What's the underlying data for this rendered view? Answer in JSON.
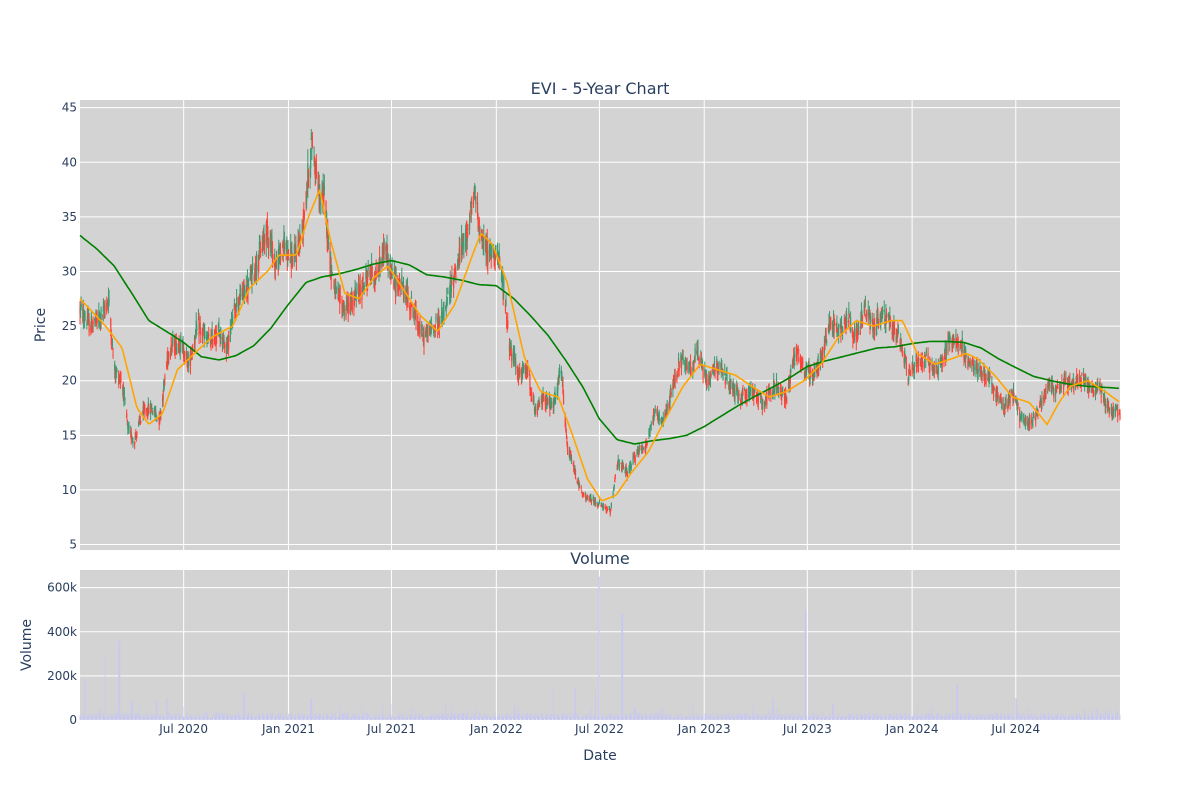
{
  "chart_data": [
    {
      "type": "candlestick",
      "title": "EVI - 5-Year Chart",
      "ylabel": "Price",
      "ylim": [
        4.5,
        45.7
      ],
      "xlim": [
        "2020-01-01",
        "2024-12-31"
      ],
      "yticks": [
        5,
        10,
        15,
        20,
        25,
        30,
        35,
        40,
        45
      ],
      "grid": true,
      "colors": {
        "increasing": "#3d9970",
        "decreasing": "#ff4136",
        "ma_short": "#ffa500",
        "ma_long": "#008000",
        "plot_bg": "#d3d3d3"
      },
      "price_anchors": [
        [
          "2020-01-01",
          26.5
        ],
        [
          "2020-01-20",
          25.0
        ],
        [
          "2020-02-10",
          26.0
        ],
        [
          "2020-02-20",
          27.5
        ],
        [
          "2020-03-01",
          21.0
        ],
        [
          "2020-03-15",
          20.0
        ],
        [
          "2020-03-25",
          15.5
        ],
        [
          "2020-04-05",
          14.5
        ],
        [
          "2020-04-20",
          17.0
        ],
        [
          "2020-05-05",
          17.5
        ],
        [
          "2020-05-20",
          16.5
        ],
        [
          "2020-06-05",
          23.0
        ],
        [
          "2020-06-25",
          23.5
        ],
        [
          "2020-07-10",
          21.5
        ],
        [
          "2020-07-25",
          25.0
        ],
        [
          "2020-08-15",
          23.5
        ],
        [
          "2020-09-01",
          24.5
        ],
        [
          "2020-09-15",
          23.0
        ],
        [
          "2020-10-01",
          27.0
        ],
        [
          "2020-10-20",
          28.5
        ],
        [
          "2020-11-05",
          30.5
        ],
        [
          "2020-11-25",
          34.0
        ],
        [
          "2020-12-10",
          30.5
        ],
        [
          "2020-12-25",
          32.5
        ],
        [
          "2021-01-10",
          31.0
        ],
        [
          "2021-01-25",
          33.5
        ],
        [
          "2021-02-05",
          39.0
        ],
        [
          "2021-02-12",
          42.0
        ],
        [
          "2021-02-25",
          36.5
        ],
        [
          "2021-03-05",
          37.0
        ],
        [
          "2021-03-15",
          31.0
        ],
        [
          "2021-03-25",
          28.0
        ],
        [
          "2021-04-10",
          26.5
        ],
        [
          "2021-04-25",
          27.5
        ],
        [
          "2021-05-10",
          28.5
        ],
        [
          "2021-05-25",
          30.0
        ],
        [
          "2021-06-05",
          29.5
        ],
        [
          "2021-06-20",
          32.5
        ],
        [
          "2021-07-01",
          29.5
        ],
        [
          "2021-07-20",
          28.5
        ],
        [
          "2021-08-05",
          27.0
        ],
        [
          "2021-08-25",
          24.0
        ],
        [
          "2021-09-15",
          25.0
        ],
        [
          "2021-10-01",
          26.0
        ],
        [
          "2021-10-20",
          30.0
        ],
        [
          "2021-11-10",
          33.5
        ],
        [
          "2021-11-25",
          37.0
        ],
        [
          "2021-12-05",
          33.0
        ],
        [
          "2021-12-20",
          31.5
        ],
        [
          "2022-01-01",
          32.0
        ],
        [
          "2022-01-15",
          28.0
        ],
        [
          "2022-01-25",
          23.0
        ],
        [
          "2022-02-10",
          20.5
        ],
        [
          "2022-02-25",
          21.0
        ],
        [
          "2022-03-10",
          17.0
        ],
        [
          "2022-03-25",
          18.5
        ],
        [
          "2022-04-10",
          17.5
        ],
        [
          "2022-04-25",
          21.0
        ],
        [
          "2022-05-05",
          14.0
        ],
        [
          "2022-05-20",
          11.5
        ],
        [
          "2022-06-01",
          9.5
        ],
        [
          "2022-06-20",
          9.0
        ],
        [
          "2022-07-05",
          8.5
        ],
        [
          "2022-07-20",
          8.0
        ],
        [
          "2022-08-01",
          12.5
        ],
        [
          "2022-08-20",
          11.5
        ],
        [
          "2022-09-05",
          13.5
        ],
        [
          "2022-09-20",
          14.0
        ],
        [
          "2022-10-05",
          17.0
        ],
        [
          "2022-10-20",
          16.0
        ],
        [
          "2022-11-05",
          19.0
        ],
        [
          "2022-11-20",
          22.0
        ],
        [
          "2022-12-05",
          21.0
        ],
        [
          "2022-12-20",
          22.5
        ],
        [
          "2023-01-05",
          20.0
        ],
        [
          "2023-01-25",
          21.5
        ],
        [
          "2023-02-15",
          19.5
        ],
        [
          "2023-03-05",
          18.5
        ],
        [
          "2023-03-25",
          19.0
        ],
        [
          "2023-04-15",
          18.0
        ],
        [
          "2023-05-05",
          19.5
        ],
        [
          "2023-05-25",
          18.5
        ],
        [
          "2023-06-10",
          23.0
        ],
        [
          "2023-06-25",
          21.0
        ],
        [
          "2023-07-10",
          20.5
        ],
        [
          "2023-07-25",
          22.0
        ],
        [
          "2023-08-10",
          25.5
        ],
        [
          "2023-08-25",
          24.5
        ],
        [
          "2023-09-10",
          26.0
        ],
        [
          "2023-09-25",
          24.0
        ],
        [
          "2023-10-10",
          26.5
        ],
        [
          "2023-10-25",
          25.0
        ],
        [
          "2023-11-10",
          26.0
        ],
        [
          "2023-11-25",
          25.0
        ],
        [
          "2023-12-10",
          24.0
        ],
        [
          "2023-12-25",
          20.5
        ],
        [
          "2024-01-10",
          21.5
        ],
        [
          "2024-01-25",
          22.0
        ],
        [
          "2024-02-10",
          21.0
        ],
        [
          "2024-02-25",
          22.0
        ],
        [
          "2024-03-10",
          24.0
        ],
        [
          "2024-03-25",
          23.5
        ],
        [
          "2024-04-10",
          21.5
        ],
        [
          "2024-04-25",
          21.0
        ],
        [
          "2024-05-10",
          20.5
        ],
        [
          "2024-05-25",
          19.0
        ],
        [
          "2024-06-10",
          17.5
        ],
        [
          "2024-06-25",
          19.0
        ],
        [
          "2024-07-10",
          16.5
        ],
        [
          "2024-07-25",
          16.0
        ],
        [
          "2024-08-10",
          17.5
        ],
        [
          "2024-08-25",
          19.5
        ],
        [
          "2024-09-10",
          19.0
        ],
        [
          "2024-09-25",
          20.0
        ],
        [
          "2024-10-10",
          19.5
        ],
        [
          "2024-10-25",
          20.5
        ],
        [
          "2024-11-10",
          19.0
        ],
        [
          "2024-11-25",
          19.5
        ],
        [
          "2024-12-10",
          17.5
        ],
        [
          "2024-12-31",
          17.0
        ]
      ],
      "ma_short_anchors": [
        [
          "2020-01-01",
          27.5
        ],
        [
          "2020-02-15",
          25.0
        ],
        [
          "2020-03-15",
          23.0
        ],
        [
          "2020-04-10",
          17.5
        ],
        [
          "2020-05-01",
          16.0
        ],
        [
          "2020-05-25",
          17.0
        ],
        [
          "2020-06-20",
          21.0
        ],
        [
          "2020-07-20",
          22.5
        ],
        [
          "2020-08-20",
          24.0
        ],
        [
          "2020-09-25",
          25.0
        ],
        [
          "2020-10-25",
          28.5
        ],
        [
          "2020-11-25",
          30.0
        ],
        [
          "2020-12-15",
          31.5
        ],
        [
          "2021-01-15",
          31.5
        ],
        [
          "2021-02-05",
          35.0
        ],
        [
          "2021-02-25",
          37.5
        ],
        [
          "2021-03-15",
          33.0
        ],
        [
          "2021-04-10",
          28.0
        ],
        [
          "2021-05-05",
          27.5
        ],
        [
          "2021-06-01",
          29.5
        ],
        [
          "2021-06-25",
          30.5
        ],
        [
          "2021-07-20",
          28.5
        ],
        [
          "2021-08-20",
          26.0
        ],
        [
          "2021-09-20",
          24.5
        ],
        [
          "2021-10-20",
          27.0
        ],
        [
          "2021-11-20",
          31.5
        ],
        [
          "2021-12-05",
          33.5
        ],
        [
          "2021-12-25",
          32.5
        ],
        [
          "2022-01-20",
          29.0
        ],
        [
          "2022-02-20",
          22.0
        ],
        [
          "2022-03-20",
          19.0
        ],
        [
          "2022-04-20",
          18.5
        ],
        [
          "2022-05-15",
          15.0
        ],
        [
          "2022-06-10",
          11.0
        ],
        [
          "2022-07-05",
          9.0
        ],
        [
          "2022-07-30",
          9.5
        ],
        [
          "2022-08-25",
          11.5
        ],
        [
          "2022-09-25",
          13.5
        ],
        [
          "2022-10-25",
          16.5
        ],
        [
          "2022-11-25",
          19.5
        ],
        [
          "2022-12-25",
          21.5
        ],
        [
          "2023-01-25",
          21.0
        ],
        [
          "2023-02-25",
          20.5
        ],
        [
          "2023-03-25",
          19.5
        ],
        [
          "2023-04-25",
          18.5
        ],
        [
          "2023-05-25",
          19.0
        ],
        [
          "2023-06-25",
          20.0
        ],
        [
          "2023-07-25",
          21.5
        ],
        [
          "2023-08-25",
          24.0
        ],
        [
          "2023-09-25",
          25.5
        ],
        [
          "2023-10-25",
          25.0
        ],
        [
          "2023-11-25",
          25.5
        ],
        [
          "2023-12-15",
          25.5
        ],
        [
          "2024-01-10",
          22.5
        ],
        [
          "2024-02-10",
          21.5
        ],
        [
          "2024-03-10",
          22.0
        ],
        [
          "2024-04-05",
          22.5
        ],
        [
          "2024-04-25",
          22.0
        ],
        [
          "2024-05-25",
          20.5
        ],
        [
          "2024-06-25",
          18.5
        ],
        [
          "2024-07-25",
          18.0
        ],
        [
          "2024-08-25",
          16.0
        ],
        [
          "2024-09-15",
          18.0
        ],
        [
          "2024-10-05",
          19.5
        ],
        [
          "2024-11-05",
          20.0
        ],
        [
          "2024-12-05",
          19.0
        ],
        [
          "2024-12-31",
          18.0
        ]
      ],
      "ma_long_anchors": [
        [
          "2020-01-01",
          33.3
        ],
        [
          "2020-02-01",
          32.0
        ],
        [
          "2020-03-01",
          30.5
        ],
        [
          "2020-04-01",
          28.0
        ],
        [
          "2020-05-01",
          25.5
        ],
        [
          "2020-06-01",
          24.5
        ],
        [
          "2020-07-01",
          23.5
        ],
        [
          "2020-08-01",
          22.2
        ],
        [
          "2020-09-01",
          21.9
        ],
        [
          "2020-10-01",
          22.3
        ],
        [
          "2020-11-01",
          23.2
        ],
        [
          "2020-12-01",
          24.8
        ],
        [
          "2021-01-01",
          27.0
        ],
        [
          "2021-02-01",
          29.0
        ],
        [
          "2021-03-01",
          29.5
        ],
        [
          "2021-04-01",
          29.8
        ],
        [
          "2021-05-01",
          30.2
        ],
        [
          "2021-06-01",
          30.7
        ],
        [
          "2021-07-01",
          31.0
        ],
        [
          "2021-08-01",
          30.6
        ],
        [
          "2021-09-01",
          29.7
        ],
        [
          "2021-10-01",
          29.5
        ],
        [
          "2021-11-01",
          29.2
        ],
        [
          "2021-12-01",
          28.8
        ],
        [
          "2022-01-01",
          28.7
        ],
        [
          "2022-02-01",
          27.5
        ],
        [
          "2022-03-01",
          26.0
        ],
        [
          "2022-04-01",
          24.2
        ],
        [
          "2022-05-01",
          22.0
        ],
        [
          "2022-06-01",
          19.5
        ],
        [
          "2022-07-01",
          16.5
        ],
        [
          "2022-08-01",
          14.6
        ],
        [
          "2022-09-01",
          14.2
        ],
        [
          "2022-10-01",
          14.5
        ],
        [
          "2022-11-01",
          14.7
        ],
        [
          "2022-12-01",
          15.0
        ],
        [
          "2023-01-01",
          15.8
        ],
        [
          "2023-02-01",
          16.8
        ],
        [
          "2023-03-01",
          17.7
        ],
        [
          "2023-04-01",
          18.6
        ],
        [
          "2023-05-01",
          19.4
        ],
        [
          "2023-06-01",
          20.3
        ],
        [
          "2023-07-01",
          21.3
        ],
        [
          "2023-08-01",
          21.8
        ],
        [
          "2023-09-01",
          22.2
        ],
        [
          "2023-10-01",
          22.6
        ],
        [
          "2023-11-01",
          23.0
        ],
        [
          "2023-12-01",
          23.1
        ],
        [
          "2024-01-01",
          23.4
        ],
        [
          "2024-02-01",
          23.6
        ],
        [
          "2024-03-01",
          23.6
        ],
        [
          "2024-04-01",
          23.5
        ],
        [
          "2024-05-01",
          23.0
        ],
        [
          "2024-06-01",
          22.0
        ],
        [
          "2024-07-01",
          21.2
        ],
        [
          "2024-08-01",
          20.4
        ],
        [
          "2024-09-01",
          20.0
        ],
        [
          "2024-10-01",
          19.7
        ],
        [
          "2024-11-01",
          19.5
        ],
        [
          "2024-12-01",
          19.4
        ],
        [
          "2024-12-31",
          19.3
        ]
      ]
    },
    {
      "type": "bar",
      "title": "Volume",
      "xlabel": "Date",
      "ylabel": "Volume",
      "ylim": [
        0,
        680000
      ],
      "yticks": [
        0,
        200000,
        400000,
        600000
      ],
      "ytick_labels": [
        "0",
        "200k",
        "400k",
        "600k"
      ],
      "xticks": [
        "2020-07-01",
        "2021-01-01",
        "2021-07-01",
        "2022-01-01",
        "2022-07-01",
        "2023-01-01",
        "2023-07-01",
        "2024-01-01",
        "2024-07-01"
      ],
      "xtick_labels": [
        "Jul 2020",
        "Jan 2021",
        "Jul 2021",
        "Jan 2022",
        "Jul 2022",
        "Jan 2023",
        "Jul 2023",
        "Jan 2024",
        "Jul 2024"
      ],
      "grid": true,
      "colors": {
        "bars": "#c8c8f0",
        "plot_bg": "#d3d3d3"
      },
      "spikes": [
        [
          "2020-01-10",
          190000
        ],
        [
          "2020-02-15",
          300000
        ],
        [
          "2020-03-10",
          360000
        ],
        [
          "2020-04-01",
          80000
        ],
        [
          "2020-05-15",
          90000
        ],
        [
          "2020-06-01",
          100000
        ],
        [
          "2020-10-15",
          120000
        ],
        [
          "2021-02-10",
          100000
        ],
        [
          "2022-04-10",
          140000
        ],
        [
          "2022-05-20",
          150000
        ],
        [
          "2022-06-25",
          120000
        ],
        [
          "2022-07-01",
          650000
        ],
        [
          "2022-08-10",
          480000
        ],
        [
          "2022-09-01",
          60000
        ],
        [
          "2023-05-01",
          100000
        ],
        [
          "2023-06-28",
          500000
        ],
        [
          "2023-08-15",
          70000
        ],
        [
          "2024-03-20",
          160000
        ],
        [
          "2024-07-01",
          100000
        ]
      ]
    }
  ]
}
